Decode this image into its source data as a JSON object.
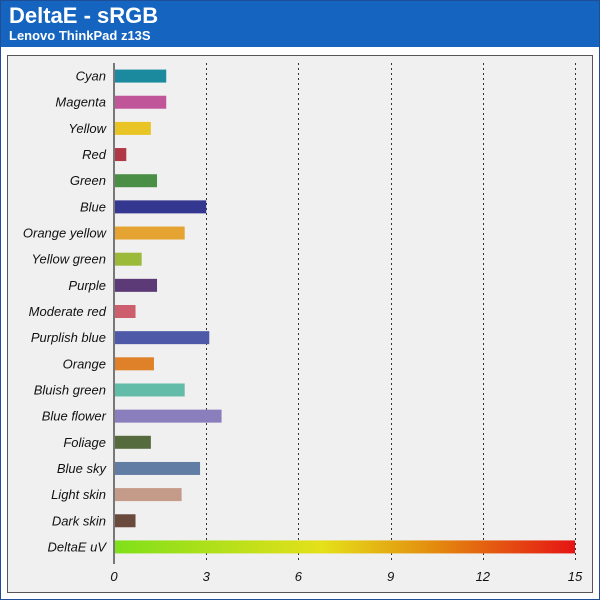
{
  "header": {
    "title": "DeltaE - sRGB",
    "subtitle": "Lenovo ThinkPad z13S"
  },
  "colors": {
    "header_bg": "#1565c0",
    "plot_bg": "#f0f0f0"
  },
  "chart_data": {
    "type": "bar",
    "orientation": "horizontal",
    "title": "DeltaE - sRGB",
    "subtitle": "Lenovo ThinkPad z13S",
    "xlim": [
      0,
      15
    ],
    "xticks": [
      "0",
      "3",
      "6",
      "9",
      "12",
      "15"
    ],
    "grid": "vertical dotted",
    "categories": [
      "Cyan",
      "Magenta",
      "Yellow",
      "Red",
      "Green",
      "Blue",
      "Orange yellow",
      "Yellow green",
      "Purple",
      "Moderate red",
      "Purplish blue",
      "Orange",
      "Bluish green",
      "Blue flower",
      "Foliage",
      "Blue sky",
      "Light skin",
      "Dark skin",
      "DeltaE uV"
    ],
    "values": [
      1.7,
      1.7,
      1.2,
      0.4,
      1.4,
      3.0,
      2.3,
      0.9,
      1.4,
      0.7,
      3.1,
      1.3,
      2.3,
      3.5,
      1.2,
      2.8,
      2.2,
      0.7,
      15
    ],
    "bar_colors": [
      "#1b8a9e",
      "#c0559a",
      "#e8c524",
      "#b03745",
      "#4b8f47",
      "#34378f",
      "#e5a431",
      "#9cba3a",
      "#5c3a78",
      "#cc5e6e",
      "#4e5aa8",
      "#df8128",
      "#62bca8",
      "#8a7fbc",
      "#556b3e",
      "#617da3",
      "#c49a88",
      "#6a4a3c",
      "gradient"
    ],
    "gradient_bar": {
      "category": "DeltaE uV",
      "stops": [
        "#7fe01a",
        "#e5e01a",
        "#e4890e",
        "#e51414"
      ]
    }
  }
}
